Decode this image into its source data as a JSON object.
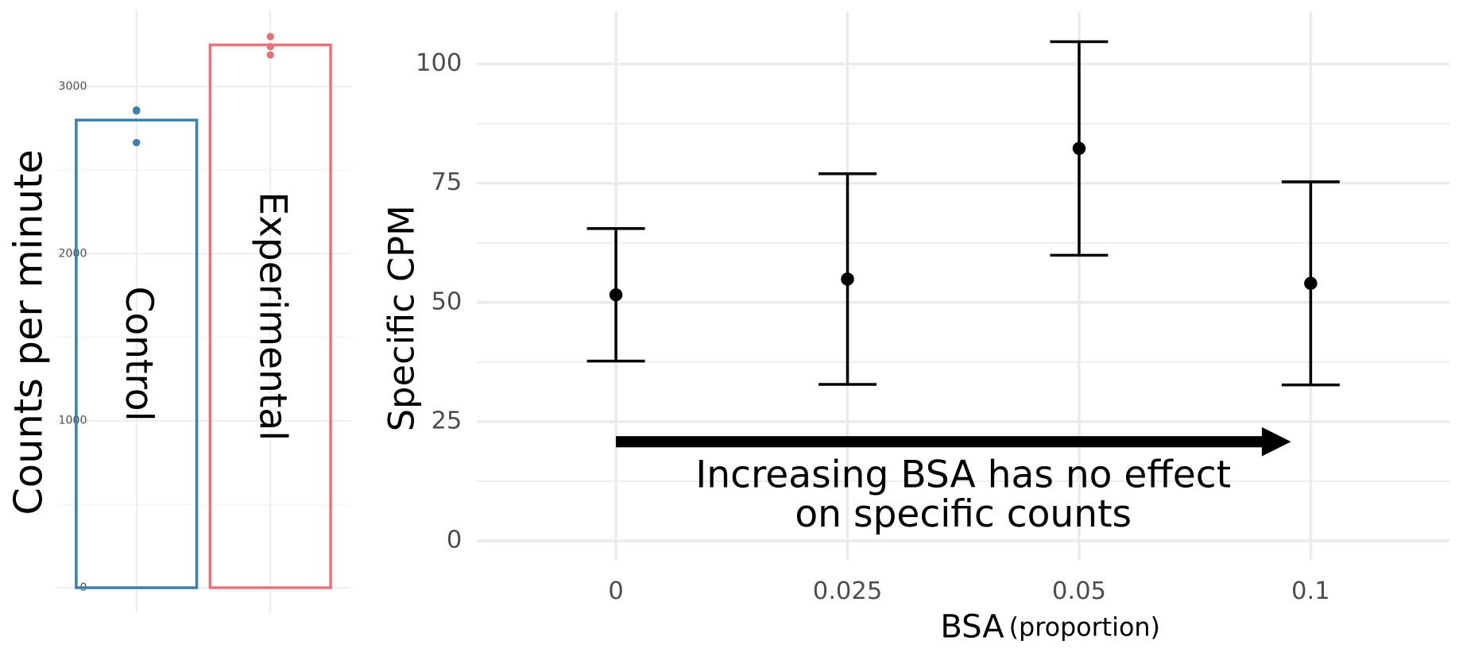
{
  "chart_data": [
    {
      "type": "bar",
      "y_label": "Counts per minute",
      "categories": [
        "Control",
        "Experimental"
      ],
      "values": [
        2800,
        3250
      ],
      "colors": [
        "#3f7fa8",
        "#e8737b"
      ],
      "points": [
        [
          2860,
          2855,
          2665
        ],
        [
          3300,
          3240,
          3190
        ]
      ],
      "ylim": [
        -150,
        3460
      ],
      "yticks": [
        0,
        1000,
        2000,
        3000
      ],
      "minor_yticks": [
        500,
        1500,
        2500
      ],
      "grid": true
    },
    {
      "type": "errorbar",
      "y_label": "Specific CPM",
      "x_label": "BSA",
      "x_label_unit": "(proportion)",
      "categories": [
        "0",
        "0.025",
        "0.05",
        "0.1"
      ],
      "values": [
        51.6,
        54.9,
        82.3,
        54.0
      ],
      "errors": [
        13.9,
        22.1,
        22.4,
        21.3
      ],
      "color": "#000000",
      "ylim": [
        -4,
        111
      ],
      "yticks": [
        0,
        25,
        50,
        75,
        100
      ],
      "minor_yticks": [
        12.5,
        37.5,
        62.5,
        87.5
      ],
      "grid": true,
      "annotation": [
        "Increasing BSA has no effect",
        "on specific counts"
      ]
    }
  ]
}
